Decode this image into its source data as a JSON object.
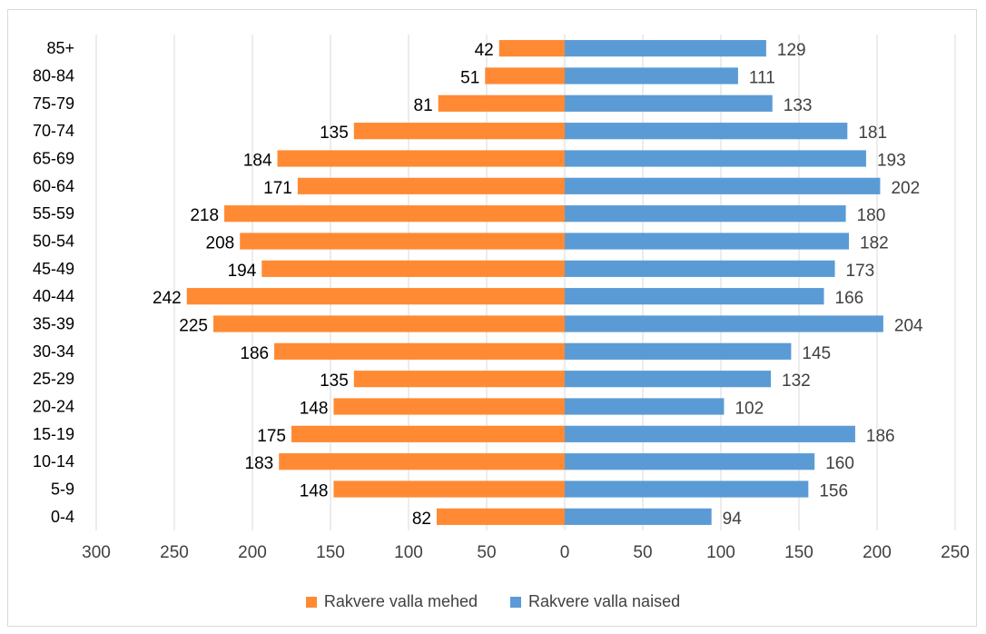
{
  "chart_data": {
    "type": "bar",
    "orientation": "horizontal",
    "layout": "population-pyramid",
    "categories": [
      "85+",
      "80-84",
      "75-79",
      "70-74",
      "65-69",
      "60-64",
      "55-59",
      "50-54",
      "45-49",
      "40-44",
      "35-39",
      "30-34",
      "25-29",
      "20-24",
      "15-19",
      "10-14",
      "5-9",
      "0-4"
    ],
    "series": [
      {
        "name": "Rakvere valla mehed",
        "color": "#ff8a33",
        "side": "left",
        "values": [
          42,
          51,
          81,
          135,
          184,
          171,
          218,
          208,
          194,
          242,
          225,
          186,
          135,
          148,
          175,
          183,
          148,
          82
        ]
      },
      {
        "name": "Rakvere valla naised",
        "color": "#5b9bd5",
        "side": "right",
        "values": [
          129,
          111,
          133,
          181,
          193,
          202,
          180,
          182,
          173,
          166,
          204,
          145,
          132,
          102,
          186,
          160,
          156,
          94
        ]
      }
    ],
    "x_ticks": [
      "300",
      "250",
      "200",
      "150",
      "100",
      "50",
      "0",
      "50",
      "100",
      "150",
      "200",
      "250"
    ],
    "xlim": [
      -300,
      250
    ],
    "grid": "vertical",
    "legend_position": "bottom",
    "title": "",
    "xlabel": "",
    "ylabel": ""
  }
}
